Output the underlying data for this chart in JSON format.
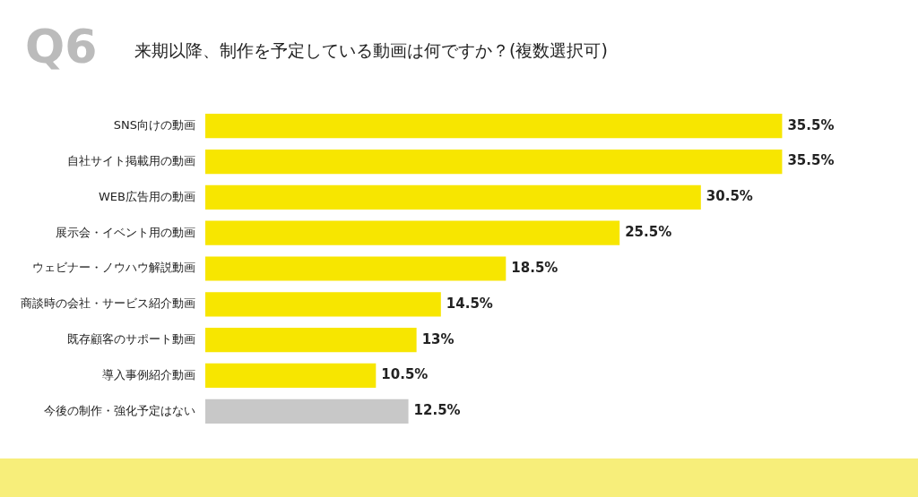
{
  "chart_data": {
    "type": "bar",
    "orientation": "horizontal",
    "title": "来期以降、制作を予定している動画は何ですか？(複数選択可)",
    "annotations": [
      "Q6"
    ],
    "categories": [
      "SNS向けの動画",
      "自社サイト掲載用の動画",
      "WEB広告用の動画",
      "展示会・イベント用の動画",
      "ウェビナー・ノウハウ解説動画",
      "商談時の会社・サービス紹介動画",
      "既存顧客のサポート動画",
      "導入事例紹介動画",
      "今後の制作・強化予定はない"
    ],
    "values": [
      35.5,
      35.5,
      30.5,
      25.5,
      18.5,
      14.5,
      13,
      10.5,
      12.5
    ],
    "colors": [
      "#f7e600",
      "#f7e600",
      "#f7e600",
      "#f7e600",
      "#f7e600",
      "#f7e600",
      "#f7e600",
      "#f7e600",
      "#c8c8c8"
    ],
    "value_labels": [
      "35.5%",
      "35.5%",
      "30.5%",
      "25.5%",
      "18.5%",
      "14.5%",
      "13%",
      "10.5%",
      "12.5%"
    ],
    "grid": false,
    "legend": false
  }
}
